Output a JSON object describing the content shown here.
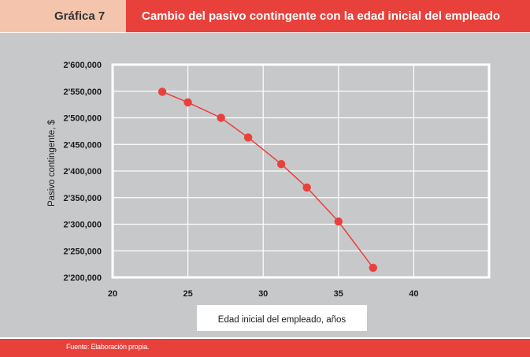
{
  "header": {
    "figure_label": "Gráfica 7",
    "title": "Cambio del pasivo contingente con la edad inicial del empleado"
  },
  "footer": {
    "source": "Fuente: Elaboración propia."
  },
  "colors": {
    "accent": "#e8413c",
    "label_bg": "#f4c5ac",
    "panel_bg": "#c7c8ca",
    "plot_bg": "#c7c8ca",
    "grid": "#ffffff",
    "series": "#e8413c"
  },
  "chart_data": {
    "type": "line",
    "title": "Cambio del pasivo contingente con la edad inicial del empleado",
    "xlabel": "Edad inicial del empleado, años",
    "ylabel": "Pasivo contingente, $",
    "xlim": [
      20,
      45
    ],
    "ylim": [
      2200000,
      2600000
    ],
    "x_ticks": [
      20,
      25,
      30,
      35,
      40
    ],
    "x_tick_labels": [
      "20",
      "25",
      "30",
      "35",
      "40"
    ],
    "y_ticks": [
      2200000,
      2250000,
      2300000,
      2350000,
      2400000,
      2450000,
      2500000,
      2550000,
      2600000
    ],
    "y_tick_labels": [
      "2'200,000",
      "2'250,000",
      "2'300,000",
      "2'350,000",
      "2'400,000",
      "2'450,000",
      "2'500,000",
      "2'550,000",
      "2'600,000"
    ],
    "grid": true,
    "legend": "none",
    "series": [
      {
        "x": [
          23.3,
          25.0,
          27.2,
          29.0,
          31.2,
          32.9,
          35.0,
          37.3
        ],
        "y": [
          2549000,
          2529000,
          2500000,
          2463000,
          2413000,
          2369000,
          2305000,
          2218000
        ]
      }
    ]
  }
}
